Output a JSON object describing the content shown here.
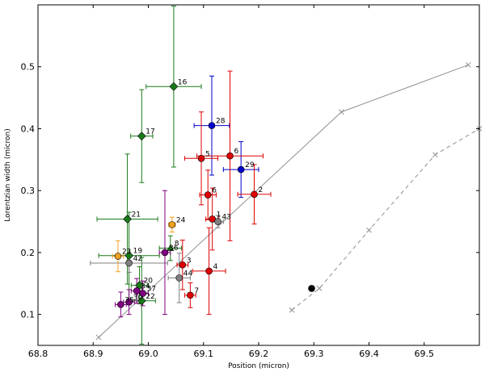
{
  "chart_data": {
    "type": "scatter",
    "title": "",
    "xlabel": "Position (micron)",
    "ylabel": "Lorentzian width (micron)",
    "xlim": [
      68.8,
      69.6
    ],
    "ylim": [
      0.05,
      0.6
    ],
    "grid": false,
    "x_ticks": [
      "68.8",
      "68.9",
      "69.0",
      "69.1",
      "69.2",
      "69.3",
      "69.4",
      "69.5"
    ],
    "x_tick_values": [
      68.8,
      68.9,
      69.0,
      69.1,
      69.2,
      69.3,
      69.4,
      69.5
    ],
    "y_ticks": [
      "0.1",
      "0.2",
      "0.3",
      "0.4",
      "0.5"
    ],
    "y_tick_values": [
      0.1,
      0.2,
      0.3,
      0.4,
      0.5
    ],
    "colors": {
      "red": "#dd0000",
      "green": "#1a7a1a",
      "blue": "#0000cc",
      "purple": "#800080",
      "orange": "#f0a020",
      "gray": "#808080",
      "black": "#000000",
      "curve": "#909090"
    },
    "curves": [
      {
        "name": "solid curve",
        "style": "solid",
        "x": [
          68.91,
          69.35,
          69.58
        ],
        "y": [
          0.063,
          0.427,
          0.503
        ]
      },
      {
        "name": "dashed curve",
        "style": "dashed",
        "x": [
          69.26,
          69.31,
          69.4,
          69.52,
          69.6
        ],
        "y": [
          0.107,
          0.142,
          0.236,
          0.358,
          0.4
        ]
      }
    ],
    "points": [
      {
        "label": "16",
        "x": 69.046,
        "y": 0.468,
        "xerr": 0.05,
        "yerr": 0.13,
        "color": "green",
        "marker": "diamond"
      },
      {
        "label": "17",
        "x": 68.988,
        "y": 0.388,
        "xerr": 0.02,
        "yerr": 0.075,
        "color": "green",
        "marker": "diamond"
      },
      {
        "label": "21",
        "x": 68.962,
        "y": 0.254,
        "xerr": 0.055,
        "yerr": 0.105,
        "color": "green",
        "marker": "diamond"
      },
      {
        "label": "19",
        "x": 68.965,
        "y": 0.195,
        "xerr": 0.055,
        "yerr": 0.07,
        "color": "green",
        "marker": "diamond"
      },
      {
        "label": "8",
        "x": 69.04,
        "y": 0.207,
        "xerr": 0.02,
        "yerr": 0.02,
        "color": "green",
        "marker": "triangle"
      },
      {
        "label": "20",
        "x": 68.984,
        "y": 0.147,
        "xerr": 0.015,
        "yerr": 0.03,
        "color": "green",
        "marker": "diamond"
      },
      {
        "label": "22",
        "x": 68.988,
        "y": 0.122,
        "xerr": 0.025,
        "yerr": 0.07,
        "color": "green",
        "marker": "diamond"
      },
      {
        "label": "28",
        "x": 69.115,
        "y": 0.405,
        "xerr": 0.032,
        "yerr": 0.08,
        "color": "blue",
        "marker": "circle"
      },
      {
        "label": "29",
        "x": 69.168,
        "y": 0.334,
        "xerr": 0.032,
        "yerr": 0.045,
        "color": "blue",
        "marker": "circle"
      },
      {
        "label": "5",
        "x": 69.096,
        "y": 0.352,
        "xerr": 0.03,
        "yerr": 0.075,
        "color": "red",
        "marker": "circle"
      },
      {
        "label": "6",
        "x": 69.148,
        "y": 0.356,
        "xerr": 0.06,
        "yerr": 0.137,
        "color": "red",
        "marker": "circle"
      },
      {
        "label": "6",
        "x": 69.108,
        "y": 0.293,
        "xerr": 0.015,
        "yerr": 0.04,
        "color": "red",
        "marker": "circle"
      },
      {
        "label": "2",
        "x": 69.192,
        "y": 0.294,
        "xerr": 0.03,
        "yerr": 0.048,
        "color": "red",
        "marker": "circle"
      },
      {
        "label": "1",
        "x": 69.116,
        "y": 0.254,
        "xerr": 0.012,
        "yerr": 0.05,
        "color": "red",
        "marker": "circle"
      },
      {
        "label": "3",
        "x": 69.062,
        "y": 0.18,
        "xerr": 0.01,
        "yerr": 0.04,
        "color": "red",
        "marker": "circle"
      },
      {
        "label": "4",
        "x": 69.11,
        "y": 0.17,
        "xerr": 0.03,
        "yerr": 0.07,
        "color": "red",
        "marker": "circle"
      },
      {
        "label": "7",
        "x": 69.076,
        "y": 0.131,
        "xerr": 0.01,
        "yerr": 0.02,
        "color": "red",
        "marker": "circle"
      },
      {
        "label": "43",
        "x": 69.126,
        "y": 0.25,
        "xerr": 0.01,
        "yerr": 0.01,
        "color": "gray",
        "marker": "circle"
      },
      {
        "label": "42",
        "x": 68.965,
        "y": 0.183,
        "xerr": 0.07,
        "yerr": 0.015,
        "color": "gray",
        "marker": "circle"
      },
      {
        "label": "44",
        "x": 69.056,
        "y": 0.159,
        "xerr": 0.02,
        "yerr": 0.04,
        "color": "gray",
        "marker": "circle"
      },
      {
        "label": "24",
        "x": 69.043,
        "y": 0.245,
        "xerr": 0.006,
        "yerr": 0.012,
        "color": "orange",
        "marker": "circle"
      },
      {
        "label": "23",
        "x": 68.945,
        "y": 0.194,
        "xerr": 0.01,
        "yerr": 0.025,
        "color": "orange",
        "marker": "circle"
      },
      {
        "label": "36",
        "x": 69.03,
        "y": 0.2,
        "xerr": 0.01,
        "yerr": 0.1,
        "color": "purple",
        "marker": "circle"
      },
      {
        "label": "34",
        "x": 68.979,
        "y": 0.138,
        "xerr": 0.01,
        "yerr": 0.02,
        "color": "purple",
        "marker": "circle"
      },
      {
        "label": "37",
        "x": 68.99,
        "y": 0.134,
        "xerr": 0.01,
        "yerr": 0.02,
        "color": "purple",
        "marker": "circle"
      },
      {
        "label": "30",
        "x": 68.965,
        "y": 0.12,
        "xerr": 0.01,
        "yerr": 0.02,
        "color": "purple",
        "marker": "circle"
      },
      {
        "label": "35",
        "x": 68.95,
        "y": 0.116,
        "xerr": 0.01,
        "yerr": 0.02,
        "color": "purple",
        "marker": "circle"
      },
      {
        "label": "",
        "x": 69.296,
        "y": 0.142,
        "xerr": 0,
        "yerr": 0,
        "color": "black",
        "marker": "circle"
      }
    ]
  }
}
